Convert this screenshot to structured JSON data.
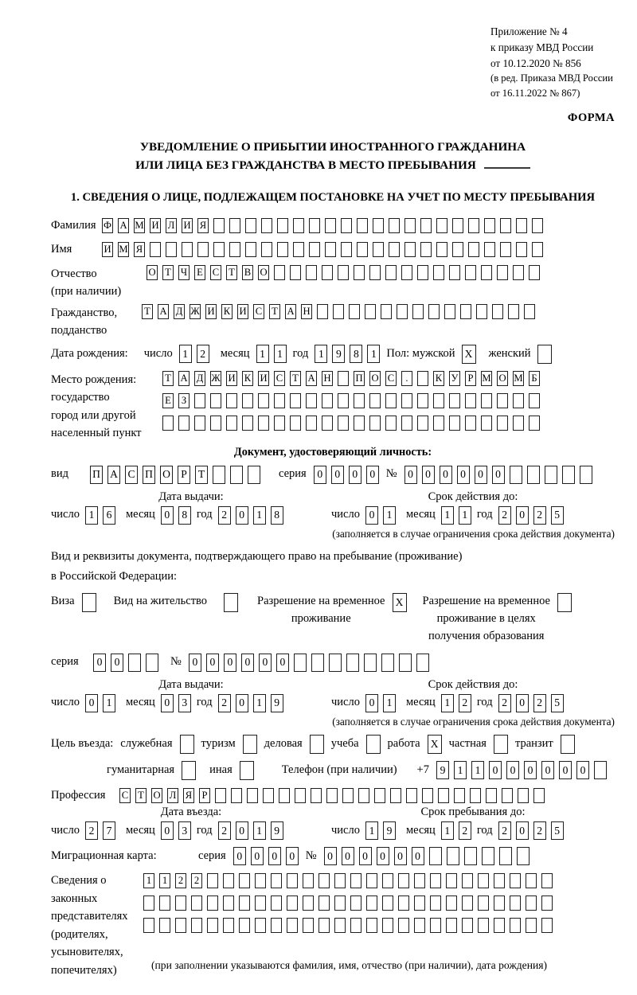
{
  "header": {
    "appendix": [
      "Приложение № 4",
      "к приказу МВД России",
      "от 10.12.2020 № 856"
    ],
    "amendment": [
      "(в ред. Приказа МВД России",
      "от 16.11.2022 № 867)"
    ],
    "form_label": "ФОРМА",
    "title1": "УВЕДОМЛЕНИЕ О ПРИБЫТИИ ИНОСТРАННОГО ГРАЖДАНИНА",
    "title2": "ИЛИ ЛИЦА БЕЗ ГРАЖДАНСТВА В МЕСТО ПРЕБЫВАНИЯ"
  },
  "section1_title": "1. СВЕДЕНИЯ О ЛИЦЕ, ПОДЛЕЖАЩЕМ ПОСТАНОВКЕ НА УЧЕТ ПО МЕСТУ ПРЕБЫВАНИЯ",
  "date_labels": {
    "day": "число",
    "month": "месяц",
    "year": "год"
  },
  "person": {
    "surname": {
      "label": "Фамилия",
      "value": "ФАМИЛИЯ",
      "cells": 28
    },
    "firstname": {
      "label": "Имя",
      "value": "ИМЯ",
      "cells": 28
    },
    "patronymic": {
      "label_lines": [
        "Отчество",
        "(при наличии)"
      ],
      "value": "ОТЧЕСТВО",
      "cells": 25
    },
    "citizenship": {
      "label_lines": [
        "Гражданство,",
        "подданство"
      ],
      "value": "ТАДЖИКИСТАН",
      "cells": 25
    },
    "birthdate": {
      "label": "Дата рождения:",
      "day": {
        "value": "12",
        "cells": 2
      },
      "month": {
        "value": "11",
        "cells": 2
      },
      "year": {
        "value": "1981",
        "cells": 4
      }
    },
    "sex": {
      "label": "Пол: мужской",
      "male_checked": true,
      "female_label": "женский",
      "female_checked": false
    },
    "birthplace": {
      "label_lines": [
        "Место рождения:",
        "государство",
        "город или другой",
        "населенный пункт"
      ],
      "rows": [
        {
          "value": "ТАДЖИКИСТАН ПОС. КУРМОМБ",
          "cells": 24
        },
        {
          "value": "ЕЗ",
          "cells": 24
        },
        {
          "value": "",
          "cells": 24
        }
      ]
    }
  },
  "identity_doc": {
    "header": "Документ, удостоверяющий личность:",
    "type_label": "вид",
    "type": {
      "value": "ПАСПОРТ",
      "cells": 10
    },
    "series_label": "серия",
    "series": {
      "value": "0000",
      "cells": 4
    },
    "number_label": "№",
    "number": {
      "value": "000000",
      "cells": 11
    },
    "issue_header": "Дата выдачи:",
    "issue": {
      "day": {
        "value": "16",
        "cells": 2
      },
      "month": {
        "value": "08",
        "cells": 2
      },
      "year": {
        "value": "2018",
        "cells": 4
      }
    },
    "expiry_header": "Срок действия до:",
    "expiry": {
      "day": {
        "value": "01",
        "cells": 2
      },
      "month": {
        "value": "11",
        "cells": 2
      },
      "year": {
        "value": "2025",
        "cells": 4
      }
    },
    "note": "(заполняется в случае ограничения срока действия документа)"
  },
  "residence_doc": {
    "intro_lines": [
      "Вид и реквизиты документа, подтверждающего право на пребывание (проживание)",
      "в Российской Федерации:"
    ],
    "options": [
      {
        "lines": [
          "Виза"
        ],
        "checked": false
      },
      {
        "lines": [
          "Вид на жительство"
        ],
        "checked": false
      },
      {
        "lines": [
          "Разрешение на временное",
          "проживание"
        ],
        "checked": true
      },
      {
        "lines": [
          "Разрешение на временное",
          "проживание в целях",
          "получения образования"
        ],
        "checked": false
      }
    ],
    "series_label": "серия",
    "series": {
      "value": "00",
      "cells": 4
    },
    "number_label": "№",
    "number": {
      "value": "000000",
      "cells": 14
    },
    "issue_header": "Дата выдачи:",
    "issue": {
      "day": {
        "value": "01",
        "cells": 2
      },
      "month": {
        "value": "03",
        "cells": 2
      },
      "year": {
        "value": "2019",
        "cells": 4
      }
    },
    "expiry_header": "Срок действия до:",
    "expiry": {
      "day": {
        "value": "01",
        "cells": 2
      },
      "month": {
        "value": "12",
        "cells": 2
      },
      "year": {
        "value": "2025",
        "cells": 4
      }
    },
    "note": "(заполняется в случае ограничения срока действия документа)"
  },
  "purpose": {
    "label": "Цель въезда:",
    "row1": [
      {
        "label": "служебная",
        "checked": false
      },
      {
        "label": "туризм",
        "checked": false
      },
      {
        "label": "деловая",
        "checked": false
      },
      {
        "label": "учеба",
        "checked": false
      },
      {
        "label": "работа",
        "checked": true
      },
      {
        "label": "частная",
        "checked": false
      },
      {
        "label": "транзит",
        "checked": false
      }
    ],
    "row2": [
      {
        "label": "гуманитарная",
        "checked": false
      },
      {
        "label": "иная",
        "checked": false
      }
    ],
    "phone_label": "Телефон (при наличии)",
    "phone_prefix": "+7",
    "phone": {
      "value": "911000000",
      "cells": 10
    }
  },
  "profession": {
    "label": "Профессия",
    "value": "СТОЛЯР",
    "cells": 27
  },
  "entry": {
    "date_header": "Дата въезда:",
    "date": {
      "day": {
        "value": "27",
        "cells": 2
      },
      "month": {
        "value": "03",
        "cells": 2
      },
      "year": {
        "value": "2019",
        "cells": 4
      }
    },
    "stay_header": "Срок пребывания до:",
    "stay": {
      "day": {
        "value": "19",
        "cells": 2
      },
      "month": {
        "value": "12",
        "cells": 2
      },
      "year": {
        "value": "2025",
        "cells": 4
      }
    }
  },
  "migration_card": {
    "label": "Миграционная карта:",
    "series_label": "серия",
    "series": {
      "value": "0000",
      "cells": 4
    },
    "number_label": "№",
    "number": {
      "value": "000000",
      "cells": 12
    }
  },
  "legal_reps": {
    "label_lines": [
      "Сведения о",
      "законных",
      "представителях",
      "(родителях,",
      "усыновителях,",
      "попечителях)"
    ],
    "rows": [
      {
        "value": "1122",
        "cells": 26
      },
      {
        "value": "",
        "cells": 26
      },
      {
        "value": "",
        "cells": 26
      }
    ],
    "note": "(при заполнении указываются фамилия, имя, отчество (при наличии), дата рождения)"
  }
}
